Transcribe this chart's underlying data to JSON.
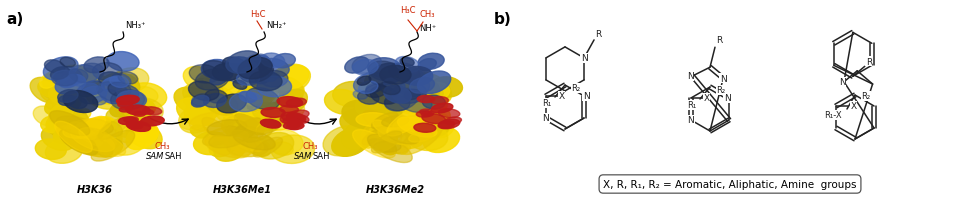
{
  "fig_width": 9.72,
  "fig_height": 2.07,
  "dpi": 100,
  "panel_a_label": "a)",
  "panel_b_label": "b)",
  "bg_color": "#ffffff",
  "protein1_label": "H3K36",
  "protein2_label": "H3K36Me1",
  "protein3_label": "H3K36Me2",
  "ch3_color": "#cc2200",
  "arrow_color": "#333333",
  "text_color": "#000000",
  "compound_caption": "X, R, R₁, R₂ = Aromatic, Aliphatic, Amine  groups"
}
